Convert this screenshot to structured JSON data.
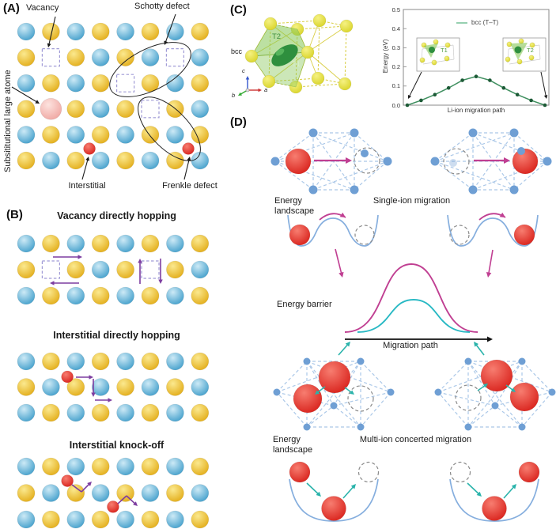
{
  "colors": {
    "atom_blue_in": "#cdeaf6",
    "atom_blue_out": "#3f9dca",
    "atom_yellow_in": "#fbe98f",
    "atom_yellow_out": "#e2ab15",
    "pink_in": "#fde3df",
    "pink_out": "#efa5a0",
    "red_in": "#f77d70",
    "red_out": "#d8201a",
    "lime_in": "#f5f183",
    "lime_out": "#d8d326",
    "vacancy": "#a09bd6",
    "purple": "#7d3da0",
    "black": "#1a1a1a",
    "bcc_edge": "#d9ce45",
    "green_fill": "#85c656",
    "dark_green": "#2e8f3e",
    "plot_line": "#3f8f5f",
    "plot_dot": "#1c5a36",
    "legend_line": "#7cc49c",
    "frame": "#888888",
    "d_dot": "#6f9fd4",
    "d_dash": "#abc8e8",
    "dash_circle": "#8a8a8a",
    "magenta": "#c03f92",
    "teal": "#2ab3ab",
    "well": "#85aede",
    "axis_a": "#cc3333",
    "axis_b": "#33aa33",
    "axis_c": "#3355cc"
  },
  "panelA": {
    "label": "(A)",
    "vacancy_label": "Vacancy",
    "schottky_label": "Schotty defect",
    "substitutional_label": "Subsititutional large atome",
    "interstitial_label": "Interstitial",
    "frenkel_label": "Frenkle defect",
    "lattice": {
      "rows": 6,
      "cols": 8,
      "vacancies": [
        [
          1,
          1
        ],
        [
          1,
          6
        ],
        [
          2,
          4
        ],
        [
          3,
          5
        ]
      ],
      "substitutional": [
        [
          3,
          1
        ]
      ],
      "interstitials": [
        [
          4.54,
          2.55
        ],
        [
          4.54,
          6.53
        ]
      ]
    }
  },
  "panelB": {
    "label": "(B)",
    "title_vacancy": "Vacancy directly hopping",
    "title_interstitial": "Interstitial directly hopping",
    "title_knockoff": "Interstitial knock-off",
    "lattice_vacancy": {
      "rows": 3,
      "cols": 8,
      "vacancies": [
        [
          1,
          1
        ],
        [
          1,
          5
        ]
      ]
    },
    "lattice_interstitial": {
      "rows": 3,
      "cols": 8,
      "interstitials": [
        [
          0.6,
          1.66
        ]
      ]
    },
    "lattice_knockoff": {
      "rows": 3,
      "cols": 8,
      "interstitials": [
        [
          0.54,
          1.66
        ],
        [
          1.52,
          3.5
        ]
      ]
    }
  },
  "panelC": {
    "label": "(C)",
    "structure_label": "bcc",
    "t1": "T1",
    "t2": "T2",
    "axis_a": "a",
    "axis_b": "b",
    "axis_c": "c"
  },
  "chart_data": {
    "type": "line",
    "series": [
      {
        "name": "bcc (T–T)",
        "values": [
          0,
          0.025,
          0.055,
          0.09,
          0.13,
          0.15,
          0.13,
          0.09,
          0.055,
          0.025,
          0
        ]
      }
    ],
    "xlabel": "Li-ion migration path",
    "ylabel": "Energy (eV)",
    "ylim": [
      0,
      0.5
    ],
    "yticks": [
      0,
      0.1,
      0.2,
      0.3,
      0.4,
      0.5
    ],
    "ytick_labels": [
      "0.0",
      "0.1",
      "0.2",
      "0.3",
      "0.4",
      "0.5"
    ],
    "grid": false,
    "legend_position": "top-center-inside",
    "insets": [
      {
        "label": "T1"
      },
      {
        "label": "T2"
      }
    ]
  },
  "panelD": {
    "label": "(D)",
    "energy_landscape_top": "Energy landscape",
    "single_ion": "Single-ion migration",
    "energy_barrier": "Energy barrier",
    "migration_path": "Migration path",
    "energy_landscape_bottom": "Energy landscape",
    "multi_ion": "Multi-ion concerted migration"
  }
}
